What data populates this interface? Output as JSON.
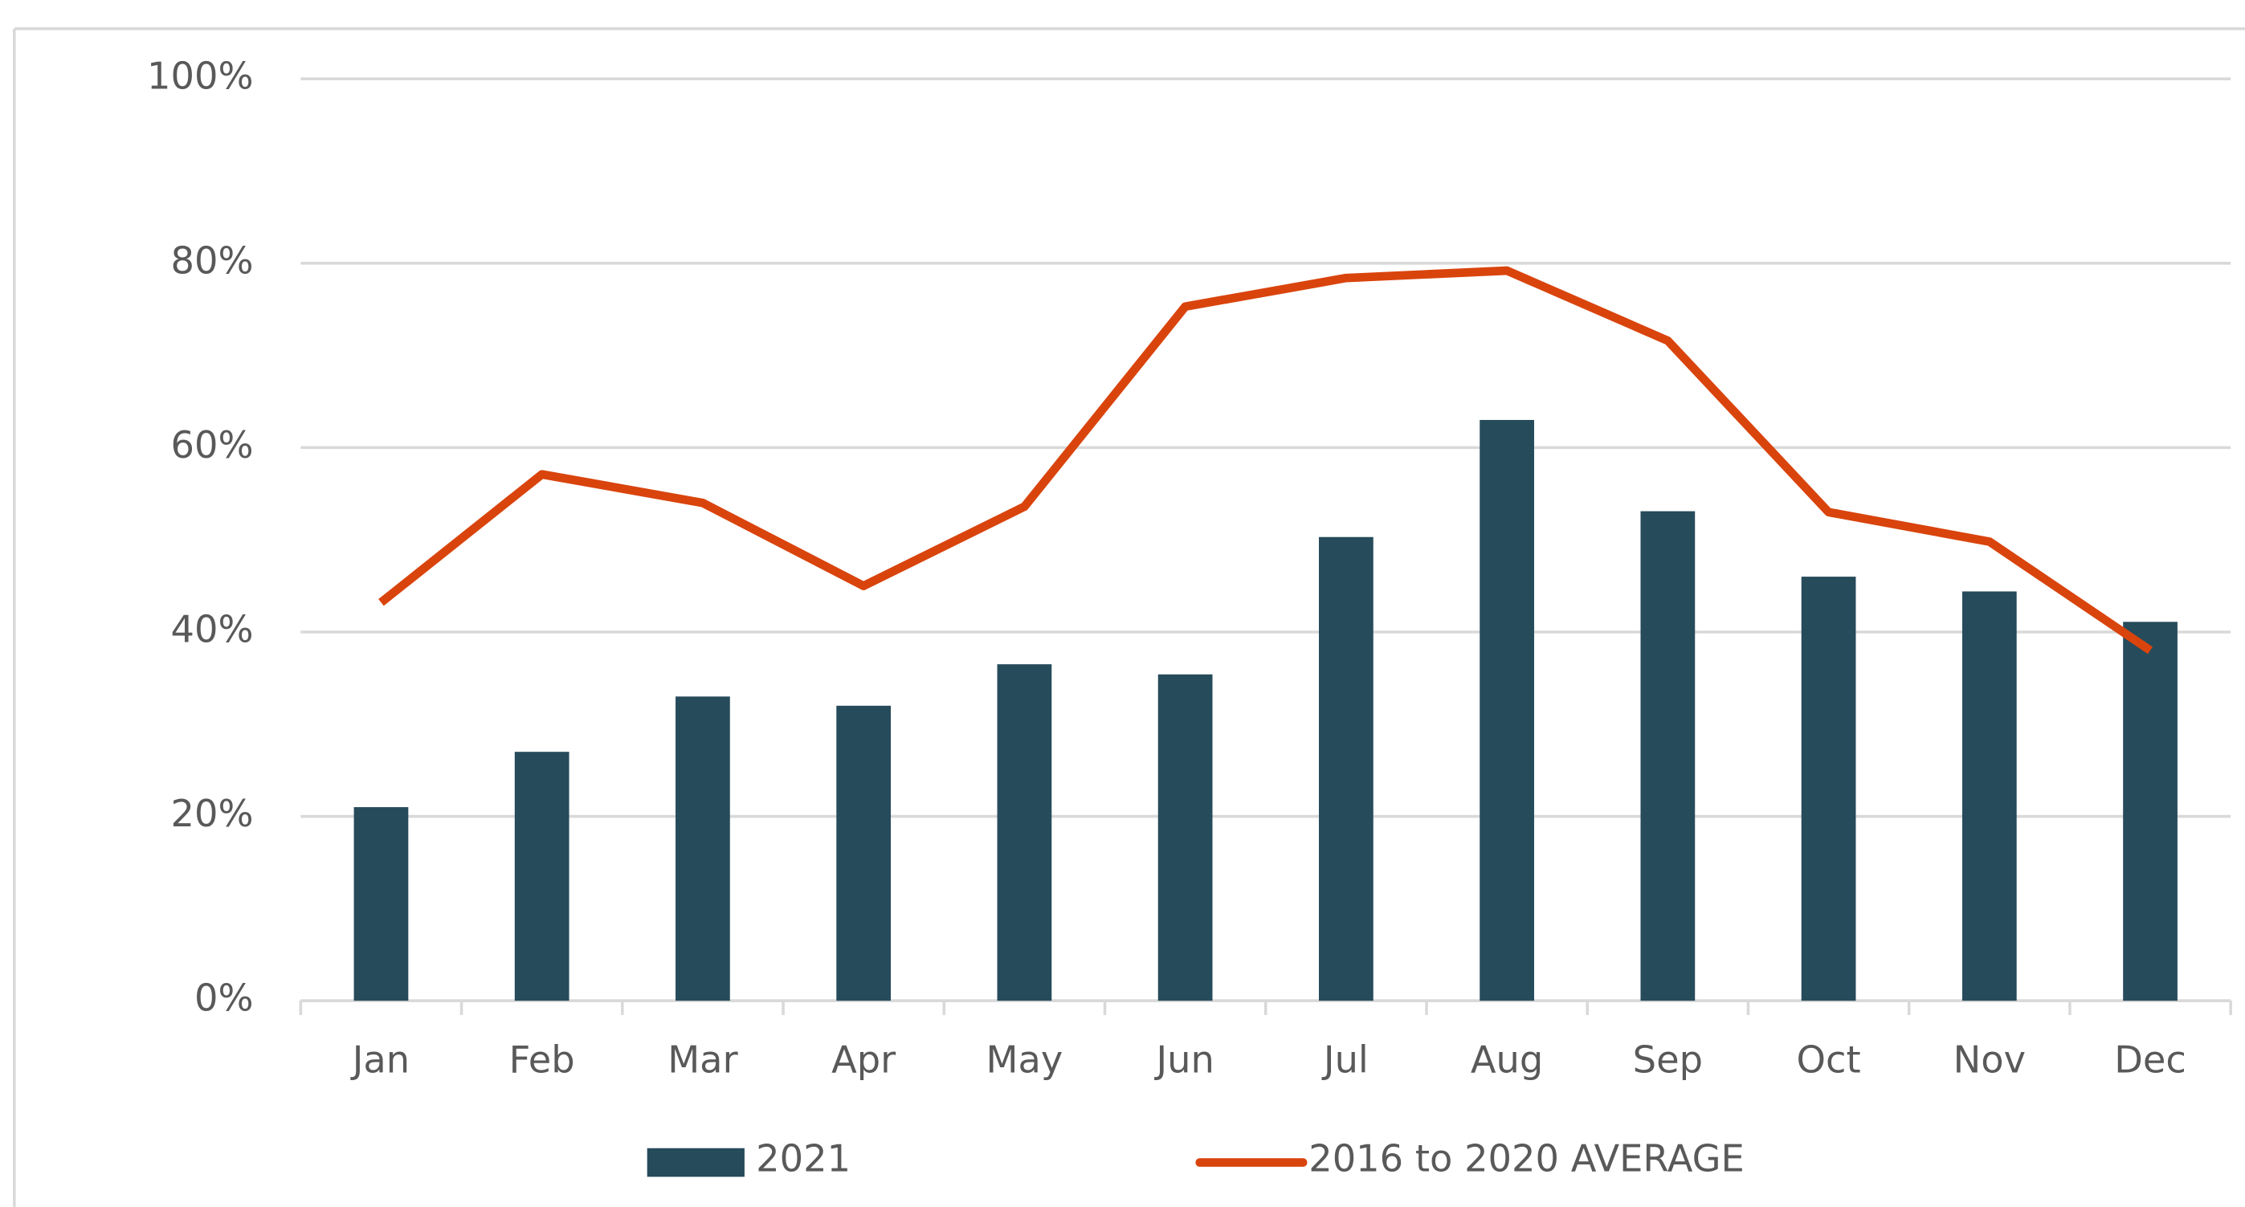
{
  "chart_data": {
    "type": "bar-line",
    "categories": [
      "Jan",
      "Feb",
      "Mar",
      "Apr",
      "May",
      "Jun",
      "Jul",
      "Aug",
      "Sep",
      "Oct",
      "Nov",
      "Dec"
    ],
    "series": [
      {
        "name": "2021",
        "type": "bar",
        "color": "#264b5b",
        "values": [
          21,
          27,
          33,
          32,
          36.5,
          35.4,
          50.3,
          63,
          53.1,
          46,
          44.4,
          41.1
        ]
      },
      {
        "name": "2016 to 2020 AVERAGE",
        "type": "line",
        "color": "#d9440d",
        "values": [
          43.2,
          57.1,
          54,
          45,
          53.6,
          75.3,
          78.4,
          79.2,
          71.6,
          53,
          49.8,
          38
        ]
      }
    ],
    "ylim": [
      0,
      100
    ],
    "yticks": [
      {
        "value": 0,
        "label": "0%"
      },
      {
        "value": 20,
        "label": "20%"
      },
      {
        "value": 40,
        "label": "40%"
      },
      {
        "value": 60,
        "label": "60%"
      },
      {
        "value": 80,
        "label": "80%"
      },
      {
        "value": 100,
        "label": "100%"
      }
    ],
    "grid": true,
    "legend": "bottom"
  }
}
